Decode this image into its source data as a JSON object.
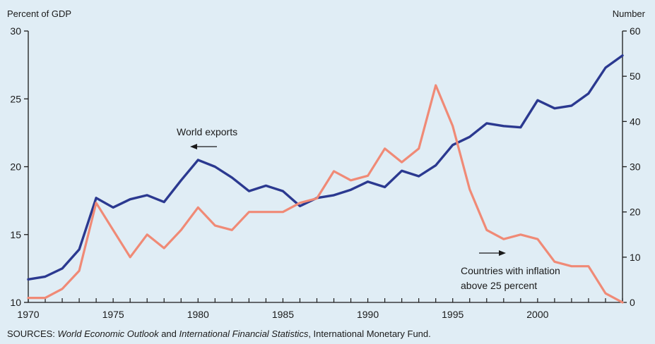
{
  "chart_data": {
    "type": "line",
    "title": "",
    "left_axis_label": "Percent of GDP",
    "right_axis_label": "Number",
    "x": [
      1970,
      1971,
      1972,
      1973,
      1974,
      1975,
      1976,
      1977,
      1978,
      1979,
      1980,
      1981,
      1982,
      1983,
      1984,
      1985,
      1986,
      1987,
      1988,
      1989,
      1990,
      1991,
      1992,
      1993,
      1994,
      1995,
      1996,
      1997,
      1998,
      1999,
      2000,
      2001,
      2002,
      2003,
      2004,
      2005
    ],
    "x_ticks": [
      1970,
      1975,
      1980,
      1985,
      1990,
      1995,
      2000
    ],
    "xlim": [
      1970,
      2005
    ],
    "y_left": {
      "ticks": [
        10,
        15,
        20,
        25,
        30
      ],
      "range": [
        10,
        30
      ]
    },
    "y_right": {
      "ticks": [
        0,
        10,
        20,
        30,
        40,
        50,
        60
      ],
      "range": [
        0,
        60
      ]
    },
    "grid": false,
    "series": [
      {
        "name": "World exports",
        "axis": "left",
        "color": "#2b3990",
        "values": [
          11.7,
          11.9,
          12.5,
          13.9,
          17.7,
          17.0,
          17.6,
          17.9,
          17.4,
          19.0,
          20.5,
          20.0,
          19.2,
          18.2,
          18.6,
          18.2,
          17.1,
          17.7,
          17.9,
          18.3,
          18.9,
          18.5,
          19.7,
          19.3,
          20.1,
          21.6,
          22.2,
          23.2,
          23.0,
          22.9,
          24.9,
          24.3,
          24.5,
          25.4,
          27.3,
          28.2
        ]
      },
      {
        "name": "Countries with inflation above 25 percent",
        "axis": "right",
        "color": "#f08a76",
        "values": [
          1,
          1,
          3,
          7,
          22,
          16,
          10,
          15,
          12,
          16,
          21,
          17,
          16,
          20,
          20,
          20,
          22,
          23,
          29,
          27,
          28,
          34,
          31,
          34,
          48,
          39,
          25,
          16,
          14,
          15,
          14,
          9,
          8,
          8,
          2,
          0
        ]
      }
    ],
    "annotations": {
      "exports_label": "World exports",
      "inflation_label_line1": "Countries with inflation",
      "inflation_label_line2": "above 25 percent"
    }
  },
  "source": {
    "prefix": "SOURCES: ",
    "title1": "World Economic Outlook",
    "mid": " and ",
    "title2": "International Financial Statistics",
    "suffix": ", International Monetary Fund."
  }
}
